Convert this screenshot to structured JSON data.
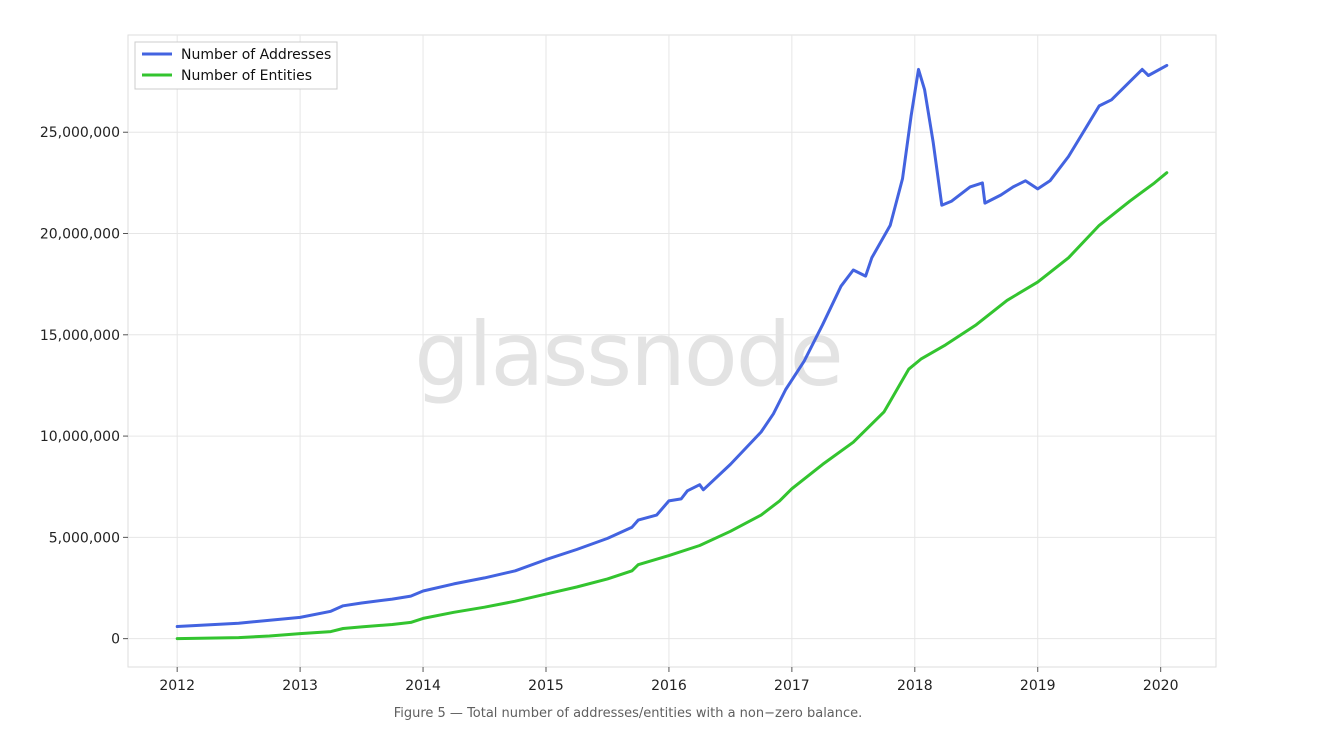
{
  "caption": "Figure 5 — Total number of addresses/entities with a non−zero balance.",
  "watermark": "glassnode",
  "chart_data": {
    "type": "line",
    "title": "",
    "xlabel": "",
    "ylabel": "",
    "xlim": [
      2011.6,
      2020.45
    ],
    "ylim": [
      -1400000,
      29800000
    ],
    "x_ticks": [
      "2012",
      "2013",
      "2014",
      "2015",
      "2016",
      "2017",
      "2018",
      "2019",
      "2020"
    ],
    "y_ticks": [
      {
        "value": 0,
        "label": "0"
      },
      {
        "value": 5000000,
        "label": "5,000,000"
      },
      {
        "value": 10000000,
        "label": "10,000,000"
      },
      {
        "value": 15000000,
        "label": "15,000,000"
      },
      {
        "value": 20000000,
        "label": "20,000,000"
      },
      {
        "value": 25000000,
        "label": "25,000,000"
      }
    ],
    "grid": true,
    "legend_position": "top-left",
    "series": [
      {
        "name": "Number of Addresses",
        "color": "#4363e0",
        "points": [
          [
            2012.0,
            600000
          ],
          [
            2012.5,
            760000
          ],
          [
            2013.0,
            1050000
          ],
          [
            2013.25,
            1350000
          ],
          [
            2013.35,
            1620000
          ],
          [
            2013.5,
            1760000
          ],
          [
            2013.75,
            1950000
          ],
          [
            2013.9,
            2100000
          ],
          [
            2014.0,
            2350000
          ],
          [
            2014.25,
            2700000
          ],
          [
            2014.5,
            3000000
          ],
          [
            2014.75,
            3350000
          ],
          [
            2015.0,
            3900000
          ],
          [
            2015.25,
            4400000
          ],
          [
            2015.5,
            4950000
          ],
          [
            2015.7,
            5500000
          ],
          [
            2015.75,
            5850000
          ],
          [
            2015.9,
            6100000
          ],
          [
            2016.0,
            6800000
          ],
          [
            2016.1,
            6900000
          ],
          [
            2016.15,
            7300000
          ],
          [
            2016.25,
            7600000
          ],
          [
            2016.28,
            7350000
          ],
          [
            2016.5,
            8600000
          ],
          [
            2016.75,
            10200000
          ],
          [
            2016.85,
            11100000
          ],
          [
            2016.95,
            12300000
          ],
          [
            2017.1,
            13700000
          ],
          [
            2017.25,
            15500000
          ],
          [
            2017.4,
            17400000
          ],
          [
            2017.5,
            18200000
          ],
          [
            2017.6,
            17900000
          ],
          [
            2017.65,
            18800000
          ],
          [
            2017.8,
            20400000
          ],
          [
            2017.9,
            22700000
          ],
          [
            2017.97,
            25800000
          ],
          [
            2018.03,
            28100000
          ],
          [
            2018.08,
            27100000
          ],
          [
            2018.15,
            24500000
          ],
          [
            2018.22,
            21400000
          ],
          [
            2018.3,
            21600000
          ],
          [
            2018.45,
            22300000
          ],
          [
            2018.55,
            22500000
          ],
          [
            2018.57,
            21500000
          ],
          [
            2018.7,
            21900000
          ],
          [
            2018.8,
            22300000
          ],
          [
            2018.9,
            22600000
          ],
          [
            2019.0,
            22200000
          ],
          [
            2019.1,
            22600000
          ],
          [
            2019.25,
            23800000
          ],
          [
            2019.4,
            25300000
          ],
          [
            2019.5,
            26300000
          ],
          [
            2019.6,
            26600000
          ],
          [
            2019.75,
            27500000
          ],
          [
            2019.85,
            28100000
          ],
          [
            2019.9,
            27800000
          ],
          [
            2020.05,
            28300000
          ]
        ]
      },
      {
        "name": "Number of Entities",
        "color": "#33c42f",
        "points": [
          [
            2012.0,
            0
          ],
          [
            2012.5,
            50000
          ],
          [
            2012.75,
            130000
          ],
          [
            2013.0,
            250000
          ],
          [
            2013.25,
            350000
          ],
          [
            2013.35,
            500000
          ],
          [
            2013.5,
            580000
          ],
          [
            2013.75,
            700000
          ],
          [
            2013.9,
            800000
          ],
          [
            2014.0,
            1000000
          ],
          [
            2014.25,
            1300000
          ],
          [
            2014.5,
            1550000
          ],
          [
            2014.75,
            1850000
          ],
          [
            2015.0,
            2200000
          ],
          [
            2015.25,
            2550000
          ],
          [
            2015.5,
            2950000
          ],
          [
            2015.7,
            3350000
          ],
          [
            2015.75,
            3650000
          ],
          [
            2016.0,
            4100000
          ],
          [
            2016.25,
            4600000
          ],
          [
            2016.5,
            5300000
          ],
          [
            2016.75,
            6100000
          ],
          [
            2016.9,
            6800000
          ],
          [
            2017.0,
            7400000
          ],
          [
            2017.25,
            8600000
          ],
          [
            2017.5,
            9700000
          ],
          [
            2017.75,
            11200000
          ],
          [
            2017.95,
            13300000
          ],
          [
            2018.05,
            13800000
          ],
          [
            2018.25,
            14500000
          ],
          [
            2018.5,
            15500000
          ],
          [
            2018.75,
            16700000
          ],
          [
            2019.0,
            17600000
          ],
          [
            2019.25,
            18800000
          ],
          [
            2019.5,
            20400000
          ],
          [
            2019.75,
            21600000
          ],
          [
            2019.95,
            22500000
          ],
          [
            2020.05,
            23000000
          ]
        ]
      }
    ]
  }
}
